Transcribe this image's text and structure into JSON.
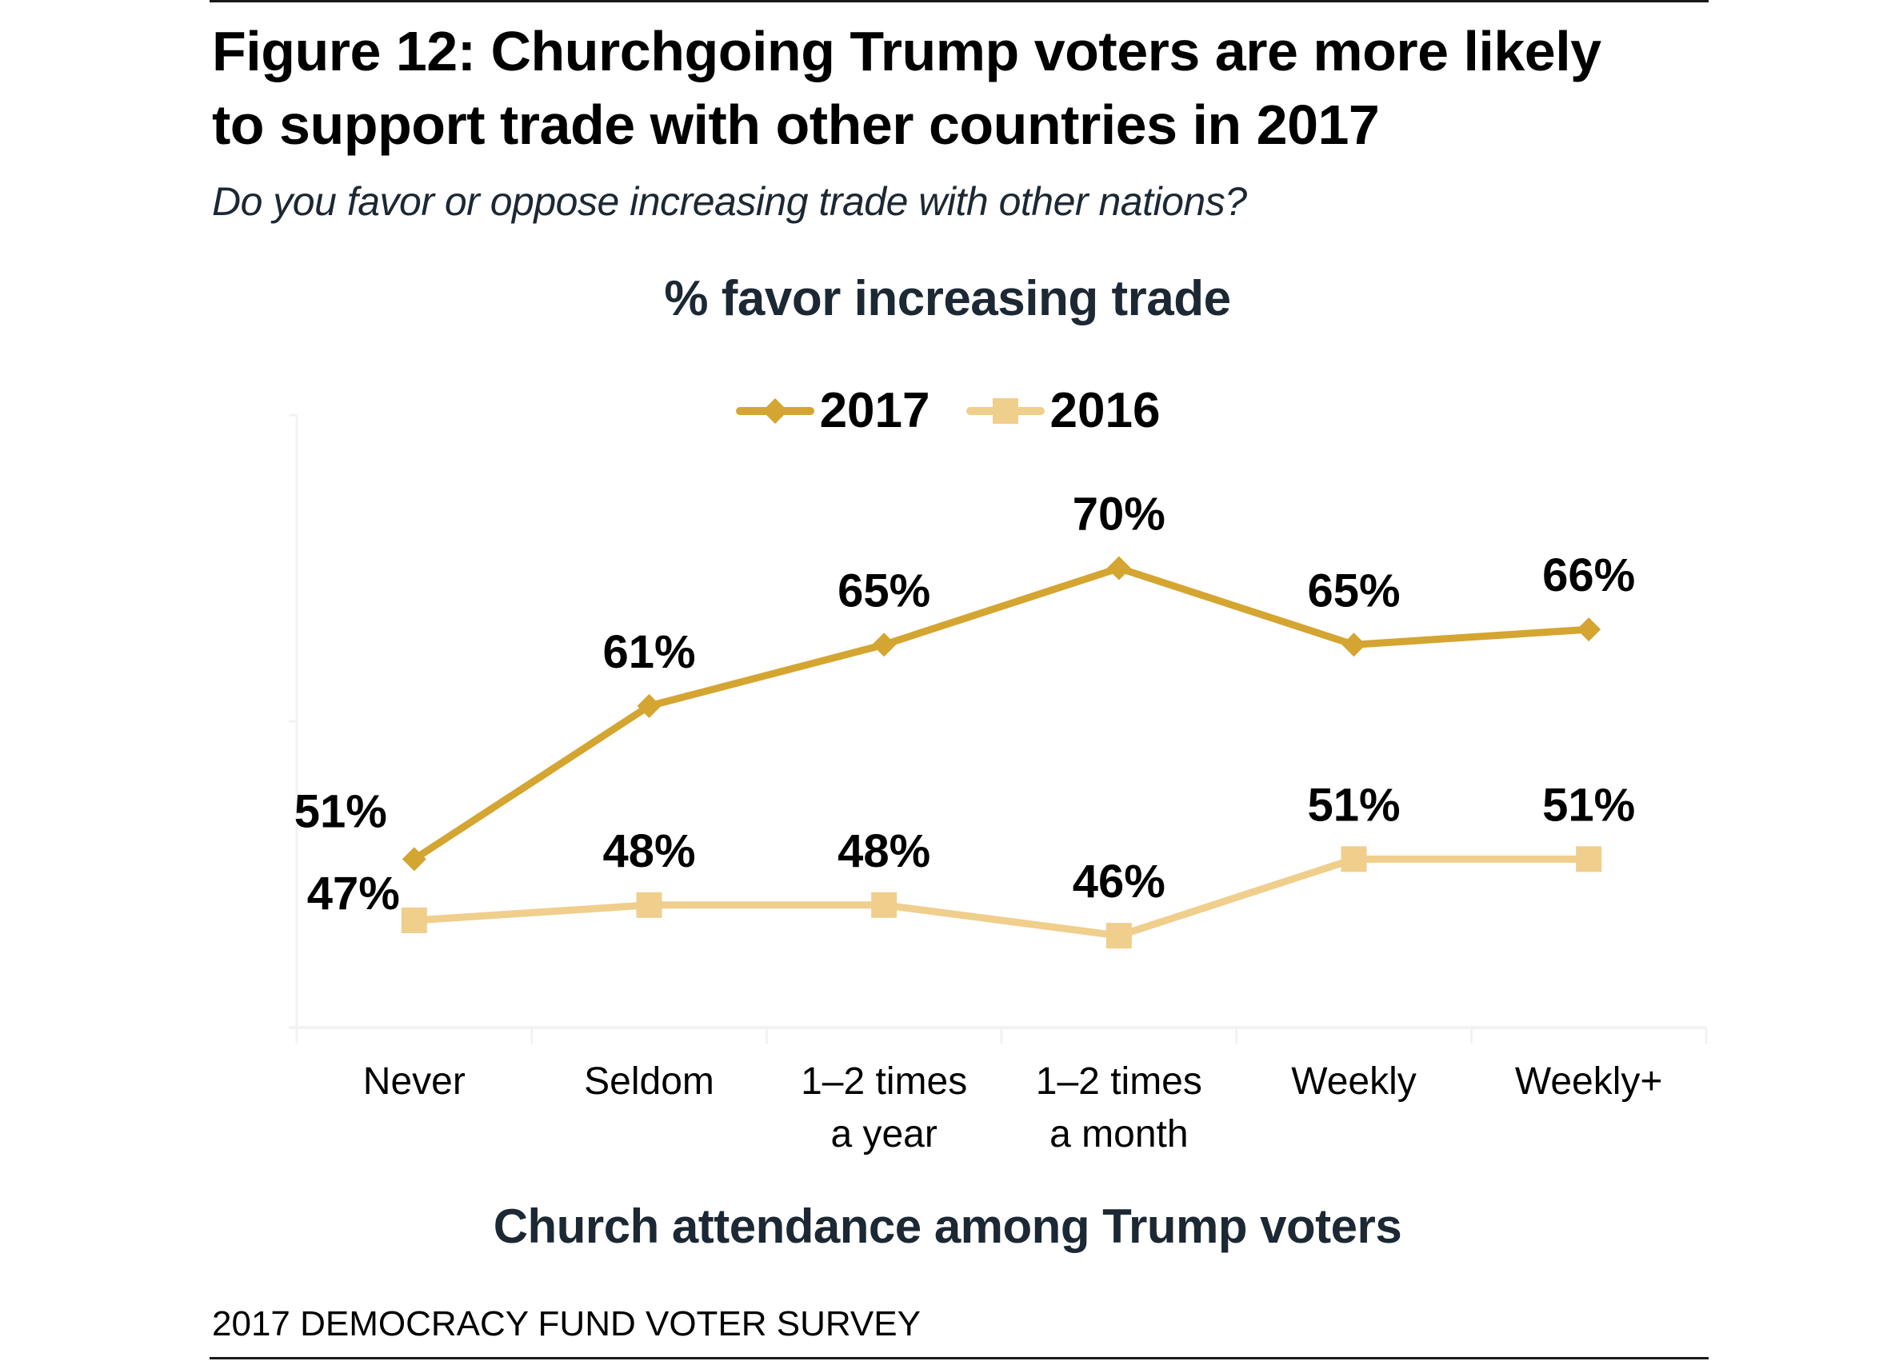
{
  "figure": {
    "title_line1": "Figure 12: Churchgoing Trump voters are more likely",
    "title_line2": "to support trade with other countries in 2017",
    "subtitle": "Do you favor or oppose increasing trade with other nations?",
    "footer": "2017 DEMOCRACY FUND VOTER SURVEY"
  },
  "chart_data": {
    "type": "line",
    "title": "% favor increasing trade",
    "xlabel": "Church attendance among Trump voters",
    "ylabel": "",
    "categories": [
      [
        "Never"
      ],
      [
        "Seldom"
      ],
      [
        "1–2 times",
        "a year"
      ],
      [
        "1–2 times",
        "a month"
      ],
      [
        "Weekly"
      ],
      [
        "Weekly+"
      ]
    ],
    "series": [
      {
        "name": "2017",
        "color": "#D4A531",
        "marker": "diamond",
        "values": [
          51,
          61,
          65,
          70,
          65,
          66
        ],
        "labels": [
          "51%",
          "61%",
          "65%",
          "70%",
          "65%",
          "66%"
        ]
      },
      {
        "name": "2016",
        "color": "#F0CE8C",
        "marker": "square",
        "values": [
          47,
          48,
          48,
          46,
          51,
          51
        ],
        "labels": [
          "47%",
          "48%",
          "48%",
          "46%",
          "51%",
          "51%"
        ]
      }
    ],
    "ylim": [
      40,
      80
    ],
    "y_ticks_shown": false,
    "grid": false,
    "legend_position": "top-center",
    "axis_color": "#F2F2F2"
  }
}
